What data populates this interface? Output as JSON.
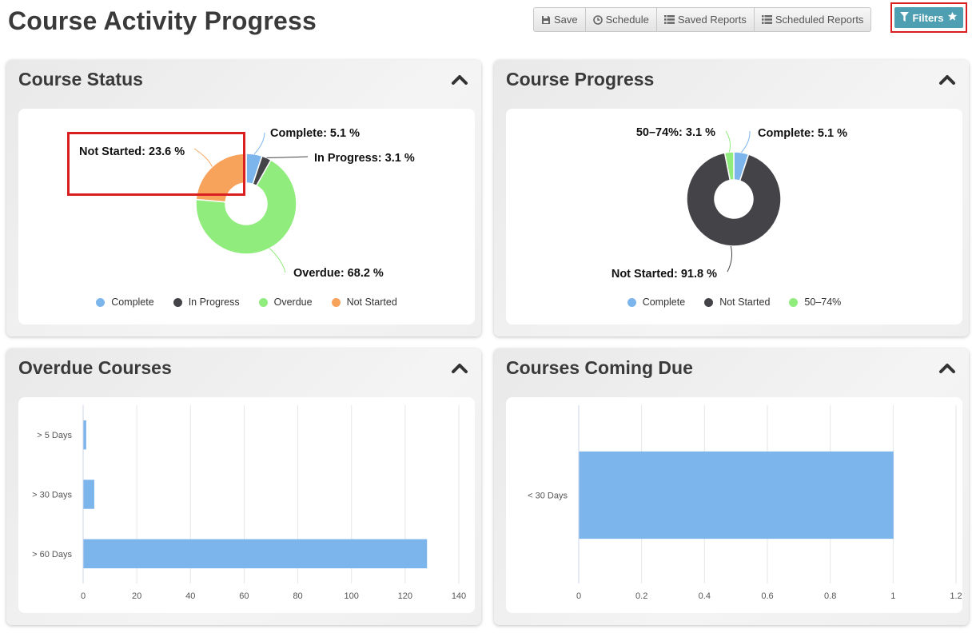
{
  "page": {
    "title": "Course Activity Progress"
  },
  "toolbar": {
    "save_label": "Save",
    "schedule_label": "Schedule",
    "saved_reports_label": "Saved Reports",
    "scheduled_reports_label": "Scheduled Reports",
    "filters_label": "Filters"
  },
  "panels": {
    "course_status": {
      "title": "Course Status"
    },
    "course_progress": {
      "title": "Course Progress"
    },
    "overdue_courses": {
      "title": "Overdue Courses"
    },
    "courses_coming_due": {
      "title": "Courses Coming Due"
    }
  },
  "chart_data": [
    {
      "id": "course_status",
      "type": "pie",
      "donut": true,
      "slices": [
        {
          "name": "Complete",
          "value": 5.1,
          "label": "Complete: 5.1 %",
          "color": "#7cb5ec"
        },
        {
          "name": "In Progress",
          "value": 3.1,
          "label": "In Progress: 3.1 %",
          "color": "#434348"
        },
        {
          "name": "Overdue",
          "value": 68.2,
          "label": "Overdue: 68.2 %",
          "color": "#90ed7d"
        },
        {
          "name": "Not Started",
          "value": 23.6,
          "label": "Not Started: 23.6 %",
          "color": "#f7a35c"
        }
      ],
      "legend": [
        "Complete",
        "In Progress",
        "Overdue",
        "Not Started"
      ],
      "legend_position": "bottom"
    },
    {
      "id": "course_progress",
      "type": "pie",
      "donut": true,
      "slices": [
        {
          "name": "Complete",
          "value": 5.1,
          "label": "Complete: 5.1 %",
          "color": "#7cb5ec"
        },
        {
          "name": "Not Started",
          "value": 91.8,
          "label": "Not Started: 91.8 %",
          "color": "#434348"
        },
        {
          "name": "50–74%",
          "value": 3.1,
          "label": "50–74%: 3.1 %",
          "color": "#90ed7d"
        }
      ],
      "legend": [
        "Complete",
        "Not Started",
        "50–74%"
      ],
      "legend_position": "bottom"
    },
    {
      "id": "overdue_courses",
      "type": "bar",
      "orientation": "horizontal",
      "categories": [
        "> 5 Days",
        "> 30 Days",
        "> 60 Days"
      ],
      "values": [
        1,
        4,
        128
      ],
      "xlim": [
        0,
        140
      ],
      "xticks": [
        0,
        20,
        40,
        60,
        80,
        100,
        120,
        140
      ],
      "color": "#7cb5ec",
      "grid": true
    },
    {
      "id": "courses_coming_due",
      "type": "bar",
      "orientation": "horizontal",
      "categories": [
        "< 30 Days"
      ],
      "values": [
        1
      ],
      "xlim": [
        0,
        1.2
      ],
      "xticks": [
        0,
        0.2,
        0.4,
        0.6,
        0.8,
        1,
        1.2
      ],
      "color": "#7cb5ec",
      "grid": true
    }
  ]
}
